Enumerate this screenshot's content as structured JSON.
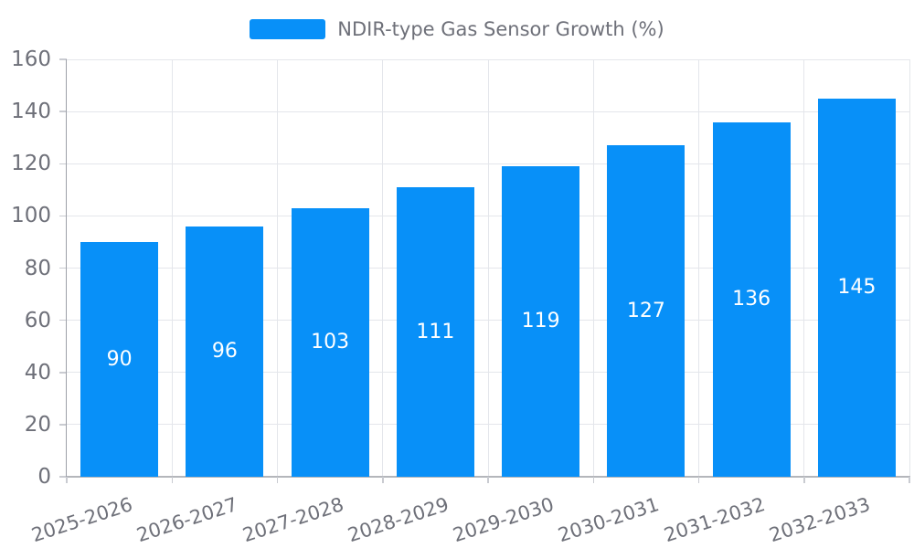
{
  "legend": {
    "label": "NDIR-type Gas Sensor Growth (%)"
  },
  "chart_data": {
    "type": "bar",
    "title": "NDIR-type Gas Sensor Growth (%)",
    "categories": [
      "2025-2026",
      "2026-2027",
      "2027-2028",
      "2028-2029",
      "2029-2030",
      "2030-2031",
      "2031-2032",
      "2032-2033"
    ],
    "values": [
      90,
      96,
      103,
      111,
      119,
      127,
      136,
      145
    ],
    "xlabel": "",
    "ylabel": "",
    "ylim": [
      0,
      160
    ],
    "yticks": [
      0,
      20,
      40,
      60,
      80,
      100,
      120,
      140,
      160
    ],
    "grid": true,
    "legend_position": "top-center",
    "value_label_position": "inside-middle",
    "x_label_rotation_deg": -18,
    "colors": {
      "bar": "#0890F8",
      "grid": "#E4E6EB",
      "axis": "#9DA0A8",
      "tick": "#C9CBD1",
      "text": "#6E7079",
      "value_label": "#FFFFFF"
    }
  }
}
